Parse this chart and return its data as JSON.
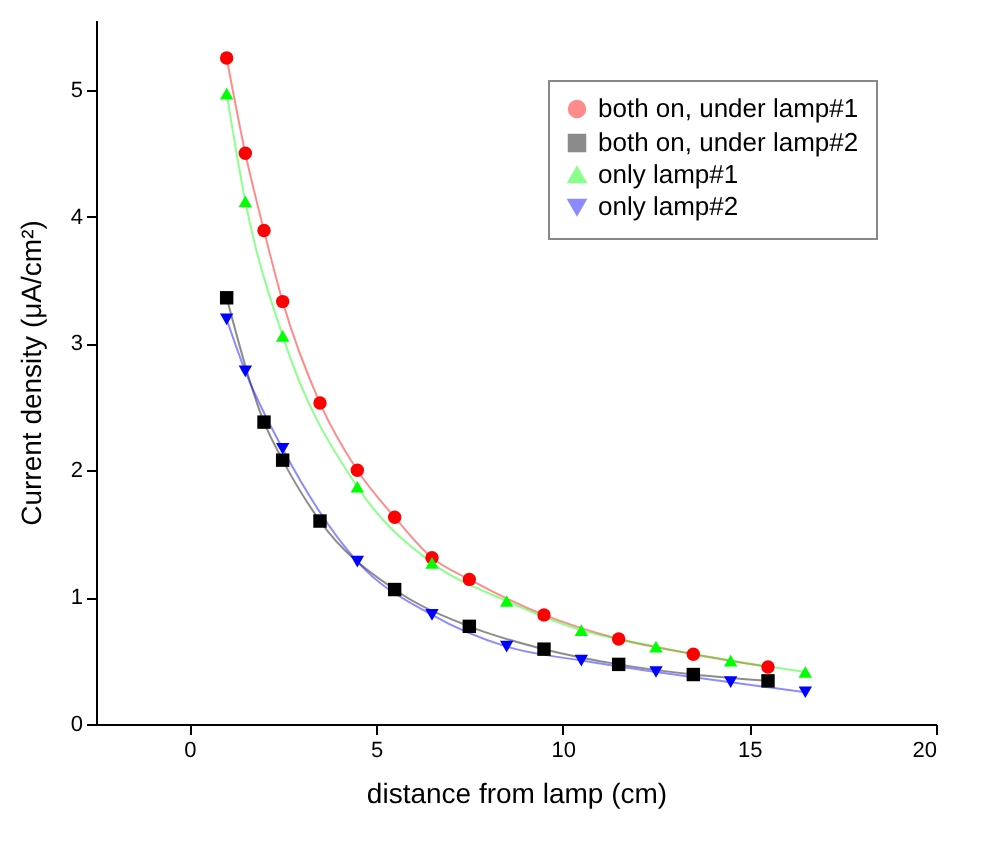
{
  "chart_data": {
    "type": "line",
    "xlabel": "distance from lamp (cm)",
    "ylabel": "Current density (μA/cm²)",
    "xlim": [
      -2.5,
      20
    ],
    "xticks": [
      0,
      5,
      10,
      15,
      20
    ],
    "ylim": [
      0,
      5.55
    ],
    "yticks": [
      0,
      1,
      2,
      3,
      4,
      5
    ],
    "grid": false,
    "legend": "top right",
    "line_style": "solid",
    "series": [
      {
        "name": "both on, under lamp#1",
        "color": "#ff0000",
        "marker": "circle",
        "x": [
          1,
          1.5,
          2,
          2.5,
          3.5,
          4.5,
          5.5,
          6.5,
          7.5,
          9.5,
          11.5,
          13.5,
          15.5
        ],
        "values": [
          5.25,
          4.5,
          3.89,
          3.33,
          2.53,
          2.0,
          1.63,
          1.31,
          1.14,
          0.86,
          0.67,
          0.55,
          0.45
        ]
      },
      {
        "name": "both on, under lamp#2",
        "color": "#000000",
        "marker": "square",
        "x": [
          1,
          2,
          2.5,
          3.5,
          5.5,
          7.5,
          9.5,
          11.5,
          13.5,
          15.5
        ],
        "values": [
          3.36,
          2.38,
          2.08,
          1.6,
          1.06,
          0.77,
          0.59,
          0.47,
          0.39,
          0.34
        ]
      },
      {
        "name": "only lamp#1",
        "color": "#00ff00",
        "marker": "triangle",
        "x": [
          1,
          1.5,
          2.5,
          4.5,
          6.5,
          8.5,
          10.5,
          12.5,
          14.5,
          16.5
        ],
        "values": [
          4.97,
          4.12,
          3.06,
          1.87,
          1.27,
          0.97,
          0.74,
          0.61,
          0.5,
          0.41
        ]
      },
      {
        "name": "only lamp#2",
        "color": "#0000ff",
        "marker": "triangle-down",
        "x": [
          1,
          1.5,
          2.5,
          4.5,
          6.5,
          8.5,
          10.5,
          12.5,
          14.5,
          16.5
        ],
        "values": [
          3.19,
          2.78,
          2.17,
          1.28,
          0.86,
          0.61,
          0.5,
          0.41,
          0.33,
          0.25
        ]
      }
    ]
  }
}
